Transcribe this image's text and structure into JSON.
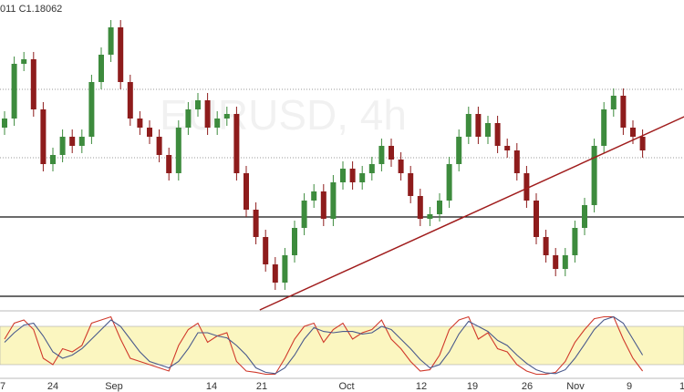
{
  "chart_data": {
    "type": "candlestick",
    "header": "011 C1.18062",
    "watermark": "EURUSD, 4h",
    "ylim": [
      1.1642,
      1.1972
    ],
    "up_color": "#3d8b3d",
    "down_color": "#8e1c1c",
    "open": [
      1.1832,
      1.1842,
      1.1902,
      1.1907,
      1.1852,
      1.1792,
      1.1802,
      1.1822,
      1.1812,
      1.1822,
      1.1882,
      1.1912,
      1.1942,
      1.1882,
      1.1842,
      1.1832,
      1.1822,
      1.1802,
      1.1782,
      1.1832,
      1.1852,
      1.1862,
      1.1832,
      1.1842,
      1.1847,
      1.1782,
      1.1742,
      1.1712,
      1.1682,
      1.1662,
      1.1692,
      1.1722,
      1.1752,
      1.1762,
      1.1732,
      1.1772,
      1.1787,
      1.1772,
      1.1782,
      1.1792,
      1.1812,
      1.1797,
      1.1782,
      1.1757,
      1.1732,
      1.1737,
      1.1752,
      1.1792,
      1.1822,
      1.1847,
      1.1822,
      1.1837,
      1.1812,
      1.1807,
      1.1782,
      1.1752,
      1.1712,
      1.1692,
      1.1677,
      1.1692,
      1.1722,
      1.1747,
      1.1812,
      1.1852,
      1.1867,
      1.1832,
      1.1822
    ],
    "high": [
      1.185,
      1.191,
      1.1915,
      1.1915,
      1.186,
      1.181,
      1.183,
      1.183,
      1.183,
      1.189,
      1.192,
      1.195,
      1.195,
      1.189,
      1.185,
      1.184,
      1.183,
      1.181,
      1.184,
      1.186,
      1.187,
      1.187,
      1.185,
      1.1855,
      1.1855,
      1.179,
      1.175,
      1.172,
      1.169,
      1.17,
      1.173,
      1.176,
      1.177,
      1.177,
      1.178,
      1.1795,
      1.1795,
      1.179,
      1.18,
      1.182,
      1.182,
      1.1805,
      1.179,
      1.1765,
      1.1745,
      1.176,
      1.18,
      1.183,
      1.1855,
      1.1855,
      1.1845,
      1.1845,
      1.182,
      1.1815,
      1.179,
      1.176,
      1.172,
      1.17,
      1.17,
      1.173,
      1.1755,
      1.182,
      1.186,
      1.1875,
      1.1875,
      1.184,
      1.183
    ],
    "low": [
      1.1824,
      1.1834,
      1.1894,
      1.1844,
      1.1784,
      1.1784,
      1.1794,
      1.1804,
      1.1804,
      1.1814,
      1.1874,
      1.1904,
      1.1874,
      1.1834,
      1.1824,
      1.1814,
      1.1794,
      1.1774,
      1.1774,
      1.1824,
      1.1844,
      1.1824,
      1.1824,
      1.1834,
      1.1774,
      1.1734,
      1.1704,
      1.1674,
      1.1654,
      1.1654,
      1.1684,
      1.1714,
      1.1744,
      1.1724,
      1.1724,
      1.1764,
      1.1764,
      1.1764,
      1.1774,
      1.1784,
      1.1789,
      1.1774,
      1.1749,
      1.1724,
      1.1724,
      1.1729,
      1.1744,
      1.1784,
      1.1814,
      1.1814,
      1.1814,
      1.1804,
      1.1799,
      1.1774,
      1.1744,
      1.1704,
      1.1684,
      1.1669,
      1.1669,
      1.1684,
      1.1714,
      1.1739,
      1.1804,
      1.1844,
      1.1824,
      1.1814,
      1.1799
    ],
    "close": [
      1.1842,
      1.1902,
      1.1907,
      1.1852,
      1.1792,
      1.1802,
      1.1822,
      1.1812,
      1.1822,
      1.1882,
      1.1912,
      1.1942,
      1.1882,
      1.1842,
      1.1832,
      1.1822,
      1.1802,
      1.1782,
      1.1832,
      1.1852,
      1.1862,
      1.1832,
      1.1842,
      1.1847,
      1.1782,
      1.1742,
      1.1712,
      1.1682,
      1.1662,
      1.1692,
      1.1722,
      1.1752,
      1.1762,
      1.1732,
      1.1772,
      1.1787,
      1.1772,
      1.1782,
      1.1792,
      1.1812,
      1.1797,
      1.1782,
      1.1757,
      1.1732,
      1.1737,
      1.1752,
      1.1792,
      1.1822,
      1.1847,
      1.1822,
      1.1837,
      1.1812,
      1.1807,
      1.1782,
      1.1752,
      1.1712,
      1.1692,
      1.1677,
      1.1692,
      1.1722,
      1.1747,
      1.1812,
      1.1852,
      1.1867,
      1.1832,
      1.1822,
      1.1807
    ],
    "levels": [
      1.1734,
      1.1647
    ],
    "dotted_levels": [
      1.1874,
      1.1799
    ],
    "trendline": {
      "from": [
        26.4,
        1.1632
      ],
      "to": [
        70.3,
        1.1844
      ],
      "color": "#a01c1c"
    },
    "x_labels": [
      "7",
      "24",
      "Sep",
      "14",
      "21",
      "Oct",
      "12",
      "19",
      "26",
      "Nov",
      "9",
      "1"
    ],
    "oscillator": {
      "ylim": [
        0,
        100
      ],
      "band": [
        20,
        80
      ],
      "band_color": "#fbf6c0",
      "series": [
        {
          "color": "#d0392b",
          "values": [
            60,
            85,
            90,
            75,
            30,
            20,
            45,
            40,
            50,
            85,
            90,
            95,
            60,
            30,
            25,
            20,
            15,
            10,
            50,
            75,
            85,
            55,
            65,
            70,
            25,
            10,
            8,
            5,
            5,
            30,
            60,
            80,
            85,
            55,
            75,
            85,
            60,
            70,
            75,
            90,
            60,
            45,
            25,
            10,
            12,
            35,
            75,
            90,
            95,
            60,
            70,
            45,
            40,
            20,
            10,
            5,
            5,
            8,
            25,
            55,
            75,
            92,
            95,
            95,
            60,
            30,
            10
          ]
        },
        {
          "color": "#4a5a8c",
          "values": [
            55,
            70,
            82,
            85,
            65,
            40,
            30,
            35,
            45,
            60,
            75,
            90,
            80,
            60,
            40,
            25,
            20,
            15,
            25,
            45,
            70,
            70,
            65,
            62,
            50,
            35,
            15,
            8,
            6,
            15,
            35,
            60,
            78,
            72,
            70,
            72,
            72,
            68,
            70,
            80,
            75,
            60,
            45,
            28,
            15,
            20,
            40,
            68,
            88,
            80,
            72,
            58,
            50,
            35,
            22,
            12,
            7,
            6,
            12,
            30,
            52,
            75,
            90,
            95,
            85,
            60,
            35
          ]
        }
      ]
    }
  }
}
